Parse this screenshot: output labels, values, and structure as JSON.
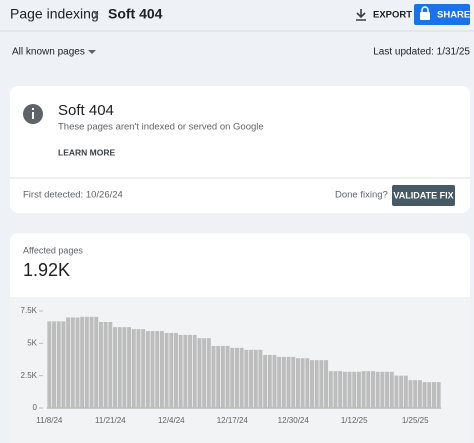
{
  "header": {
    "breadcrumb": "Page indexing",
    "title": "Soft 404",
    "export": "EXPORT",
    "share": "SHARE"
  },
  "filter": {
    "pages": "All known pages",
    "last_updated": "Last updated: 1/31/25"
  },
  "issue": {
    "title": "Soft 404",
    "description": "These pages aren't indexed or served on Google",
    "learn_more": "LEARN MORE",
    "first_detected": "First detected: 10/26/24",
    "done_fixing": "Done fixing?",
    "validate": "VALIDATE FIX"
  },
  "summary": {
    "label": "Affected pages",
    "value": "1.92K"
  },
  "chart": {
    "type": "bar",
    "color": "#bdbdbd",
    "categories": [
      "11/8/24",
      null,
      null,
      null,
      null,
      null,
      null,
      null,
      null,
      null,
      null,
      null,
      null,
      "11/21/24",
      null,
      null,
      null,
      null,
      null,
      null,
      null,
      null,
      null,
      null,
      null,
      null,
      "12/4/24",
      null,
      null,
      null,
      null,
      null,
      null,
      null,
      null,
      null,
      null,
      null,
      null,
      "12/17/24",
      null,
      null,
      null,
      null,
      null,
      null,
      null,
      null,
      null,
      null,
      null,
      null,
      "12/30/24",
      null,
      null,
      null,
      null,
      null,
      null,
      null,
      null,
      null,
      null,
      null,
      null,
      "1/12/25",
      null,
      null,
      null,
      null,
      null,
      null,
      null,
      null,
      null,
      null,
      null,
      null,
      "1/25/25",
      null,
      null,
      null,
      null,
      null
    ],
    "values": [
      6700,
      6700,
      6700,
      6700,
      7000,
      7000,
      7000,
      7050,
      7050,
      7050,
      7050,
      6650,
      6650,
      6650,
      6250,
      6250,
      6250,
      6250,
      6100,
      6100,
      6100,
      5950,
      5950,
      5950,
      5950,
      5800,
      5800,
      5800,
      5650,
      5650,
      5650,
      5650,
      5400,
      5400,
      5400,
      4800,
      4800,
      4800,
      4800,
      4650,
      4650,
      4650,
      4500,
      4500,
      4500,
      4500,
      4100,
      4100,
      4100,
      3950,
      3950,
      3950,
      3950,
      3850,
      3850,
      3850,
      3700,
      3700,
      3700,
      3700,
      2850,
      2850,
      2850,
      2800,
      2800,
      2800,
      2800,
      2850,
      2850,
      2850,
      2800,
      2800,
      2800,
      2800,
      2500,
      2500,
      2500,
      2150,
      2150,
      2150,
      2000,
      2000,
      2000,
      2000
    ],
    "ylim": [
      0,
      7500
    ],
    "yticks": [
      0,
      {
        "value": 2500,
        "label": "2.5K"
      },
      {
        "value": 5000,
        "label": "5K"
      },
      {
        "value": 7500,
        "label": "7.5K"
      }
    ]
  }
}
